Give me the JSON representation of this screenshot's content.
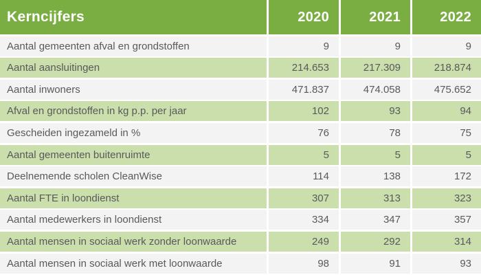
{
  "chart_data": {
    "type": "table",
    "title": "Kerncijfers",
    "columns": [
      "Kerncijfers",
      "2020",
      "2021",
      "2022"
    ],
    "rows": [
      {
        "label": "Aantal gemeenten afval en grondstoffen",
        "values": [
          9,
          9,
          9
        ],
        "display": [
          "9",
          "9",
          "9"
        ]
      },
      {
        "label": "Aantal aansluitingen",
        "values": [
          214653,
          217309,
          218874
        ],
        "display": [
          "214.653",
          "217.309",
          "218.874"
        ]
      },
      {
        "label": "Aantal inwoners",
        "values": [
          471837,
          474058,
          475652
        ],
        "display": [
          "471.837",
          "474.058",
          "475.652"
        ]
      },
      {
        "label": "Afval en grondstoffen in kg p.p. per jaar",
        "values": [
          102,
          93,
          94
        ],
        "display": [
          "102",
          "93",
          "94"
        ]
      },
      {
        "label": "Gescheiden ingezameld in %",
        "values": [
          76,
          78,
          75
        ],
        "display": [
          "76",
          "78",
          "75"
        ]
      },
      {
        "label": "Aantal gemeenten buitenruimte",
        "values": [
          5,
          5,
          5
        ],
        "display": [
          "5",
          "5",
          "5"
        ]
      },
      {
        "label": "Deelnemende scholen CleanWise",
        "values": [
          114,
          138,
          172
        ],
        "display": [
          "114",
          "138",
          "172"
        ]
      },
      {
        "label": "Aantal FTE in loondienst",
        "values": [
          307,
          313,
          323
        ],
        "display": [
          "307",
          "313",
          "323"
        ]
      },
      {
        "label": "Aantal medewerkers in loondienst",
        "values": [
          334,
          347,
          357
        ],
        "display": [
          "334",
          "347",
          "357"
        ]
      },
      {
        "label": "Aantal mensen in sociaal werk zonder loonwaarde",
        "values": [
          249,
          292,
          314
        ],
        "display": [
          "249",
          "292",
          "314"
        ]
      },
      {
        "label": "Aantal mensen in sociaal werk met loonwaarde",
        "values": [
          98,
          91,
          93
        ],
        "display": [
          "98",
          "91",
          "93"
        ]
      }
    ]
  },
  "header": {
    "title": "Kerncijfers",
    "years": [
      "2020",
      "2021",
      "2022"
    ]
  },
  "colors": {
    "header_green": "#7aae43",
    "row_green": "#cbdfad",
    "row_gray": "#f3f3f3",
    "text_gray": "#58595b",
    "header_text": "#ffffff",
    "background": "#ffffff"
  }
}
